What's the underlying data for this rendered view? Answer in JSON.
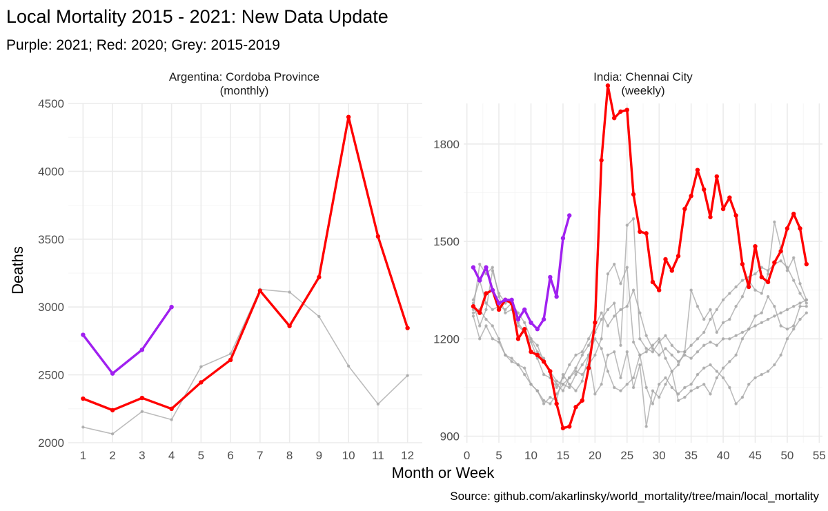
{
  "title": "Local Mortality 2015 - 2021: New Data Update",
  "subtitle": "Purple: 2021; Red: 2020; Grey: 2015-2019",
  "caption": "Source: github.com/akarlinsky/world_mortality/tree/main/local_mortality",
  "colors": {
    "y2021": "#a020f0",
    "y2020": "#ff0000",
    "grey": "#a6a6a6"
  },
  "chart_data": [
    {
      "type": "line",
      "facet_title": "Argentina: Cordoba Province\n(monthly)",
      "facet_line1": "Argentina: Cordoba Province",
      "facet_line2": "(monthly)",
      "xlabel": "Month or Week",
      "ylabel": "Deaths",
      "xlim": [
        0.5,
        12.5
      ],
      "ylim": [
        2000,
        4500
      ],
      "xticks": [
        1,
        2,
        3,
        4,
        5,
        6,
        7,
        8,
        9,
        10,
        11,
        12
      ],
      "yticks": [
        2000,
        2500,
        3000,
        3500,
        4000,
        4500
      ],
      "grid": true,
      "series": [
        {
          "color": "grey",
          "x": [
            1,
            2,
            3,
            4,
            5,
            6,
            7,
            8,
            9,
            10,
            11,
            12
          ],
          "y": [
            2115,
            2065,
            2230,
            2170,
            2560,
            2655,
            3130,
            3110,
            2930,
            2565,
            2285,
            2495
          ]
        },
        {
          "color": "y2020",
          "x": [
            1,
            2,
            3,
            4,
            5,
            6,
            7,
            8,
            9,
            10,
            11,
            12
          ],
          "y": [
            2325,
            2240,
            2330,
            2250,
            2445,
            2610,
            3120,
            2860,
            3220,
            4400,
            3520,
            2845
          ]
        },
        {
          "color": "y2021",
          "x": [
            1,
            2,
            3,
            4
          ],
          "y": [
            2795,
            2510,
            2685,
            3000
          ]
        }
      ]
    },
    {
      "type": "line",
      "facet_title": "India: Chennai City\n(weekly)",
      "facet_line1": "India: Chennai City",
      "facet_line2": "(weekly)",
      "xlim": [
        -0.5,
        55.5
      ],
      "ylim": [
        880,
        1925
      ],
      "xticks": [
        0,
        5,
        10,
        15,
        20,
        25,
        30,
        35,
        40,
        45,
        50,
        55
      ],
      "yticks": [
        900,
        1200,
        1500,
        1800
      ],
      "grid": true,
      "series": [
        {
          "color": "grey",
          "x": [
            1,
            2,
            3,
            4,
            5,
            6,
            7,
            8,
            9,
            10,
            11,
            12,
            13,
            14,
            15,
            16,
            17,
            18,
            19,
            20,
            21,
            22,
            23,
            24,
            25,
            26,
            27,
            28,
            29,
            30,
            31,
            32,
            33,
            34,
            35,
            36,
            37,
            38,
            39,
            40,
            41,
            42,
            43,
            44,
            45,
            46,
            47,
            48,
            49,
            50,
            51,
            52,
            53
          ],
          "y": [
            1290,
            1430,
            1400,
            1420,
            1330,
            1280,
            1290,
            1250,
            1220,
            1200,
            1160,
            1140,
            1090,
            1060,
            1040,
            1080,
            1110,
            1150,
            1180,
            1220,
            1260,
            1290,
            1310,
            1180,
            1550,
            1570,
            1200,
            1170,
            1160,
            1190,
            1210,
            1180,
            1160,
            1160,
            1180,
            1200,
            1220,
            1260,
            1290,
            1320,
            1340,
            1360,
            1380,
            1390,
            1400,
            1420,
            1410,
            1430,
            1440,
            1420,
            1380,
            1340,
            1310
          ]
        },
        {
          "color": "grey",
          "x": [
            1,
            2,
            3,
            4,
            5,
            6,
            7,
            8,
            9,
            10,
            11,
            12,
            13,
            14,
            15,
            16,
            17,
            18,
            19,
            20,
            21,
            22,
            23,
            24,
            25,
            26,
            27,
            28,
            29,
            30,
            31,
            32,
            33,
            34,
            35,
            36,
            37,
            38,
            39,
            40,
            41,
            42,
            43,
            44,
            45,
            46,
            47,
            48,
            49,
            50,
            51,
            52,
            53
          ],
          "y": [
            1320,
            1380,
            1310,
            1290,
            1300,
            1290,
            1310,
            1280,
            1250,
            1200,
            1180,
            1130,
            1100,
            1070,
            1060,
            1080,
            1100,
            1090,
            1120,
            1150,
            1200,
            1400,
            1430,
            1370,
            1420,
            1190,
            1150,
            1160,
            1180,
            1200,
            1140,
            1100,
            1120,
            1160,
            1350,
            1300,
            1260,
            1290,
            1220,
            1250,
            1260,
            1300,
            1330,
            1380,
            1350,
            1340,
            1400,
            1560,
            1480,
            1410,
            1450,
            1370,
            1320
          ]
        },
        {
          "color": "grey",
          "x": [
            1,
            2,
            3,
            4,
            5,
            6,
            7,
            8,
            9,
            10,
            11,
            12,
            13,
            14,
            15,
            16,
            17,
            18,
            19,
            20,
            21,
            22,
            23,
            24,
            25,
            26,
            27,
            28,
            29,
            30,
            31,
            32,
            33,
            34,
            35,
            36,
            37,
            38,
            39,
            40,
            41,
            42,
            43,
            44,
            45,
            46,
            47,
            48,
            49,
            50,
            51,
            52,
            53
          ],
          "y": [
            1310,
            1240,
            1290,
            1410,
            1340,
            1310,
            1320,
            1240,
            1220,
            1190,
            1140,
            1090,
            1080,
            1050,
            1080,
            1120,
            1150,
            1160,
            1200,
            1240,
            1280,
            1240,
            1270,
            1290,
            1300,
            1350,
            1280,
            1210,
            1170,
            1150,
            1170,
            1150,
            1130,
            1150,
            1140,
            1160,
            1180,
            1190,
            1180,
            1200,
            1200,
            1210,
            1220,
            1230,
            1240,
            1250,
            1260,
            1270,
            1280,
            1290,
            1300,
            1310,
            1320
          ]
        },
        {
          "color": "grey",
          "x": [
            1,
            2,
            3,
            4,
            5,
            6,
            7,
            8,
            9,
            10,
            11,
            12,
            13,
            14,
            15,
            16,
            17,
            18,
            19,
            20,
            21,
            22,
            23,
            24,
            25,
            26,
            27,
            28,
            29,
            30,
            31,
            32,
            33,
            34,
            35,
            36,
            37,
            38,
            39,
            40,
            41,
            42,
            43,
            44,
            45,
            46,
            47,
            48,
            49,
            50,
            51,
            52,
            53
          ],
          "y": [
            1270,
            1200,
            1240,
            1200,
            1190,
            1150,
            1140,
            1120,
            1110,
            1060,
            1040,
            1000,
            1020,
            1010,
            1090,
            1060,
            1040,
            1070,
            1150,
            1030,
            1060,
            1150,
            1160,
            1080,
            1160,
            1050,
            1120,
            930,
            1040,
            1020,
            1060,
            1100,
            1010,
            1020,
            1040,
            1050,
            1060,
            1030,
            1080,
            1110,
            1130,
            1150,
            1200,
            1230,
            1270,
            1280,
            1330,
            1300,
            1240,
            1230,
            1240,
            1300,
            1300
          ]
        },
        {
          "color": "grey",
          "x": [
            1,
            2,
            3,
            4,
            5,
            6,
            7,
            8,
            9,
            10,
            11,
            12,
            13,
            14,
            15,
            16,
            17,
            18,
            19,
            20,
            21,
            22,
            23,
            24,
            25,
            26,
            27,
            28,
            29,
            30,
            31,
            32,
            33,
            34,
            35,
            36,
            37,
            38,
            39,
            40,
            41,
            42,
            43,
            44,
            45,
            46,
            47,
            48,
            49,
            50,
            51,
            52,
            53
          ],
          "y": [
            1280,
            1290,
            1260,
            1240,
            1200,
            1150,
            1130,
            1120,
            1090,
            1060,
            1040,
            1010,
            1000,
            1030,
            1060,
            1050,
            1090,
            1120,
            1150,
            1200,
            1170,
            1100,
            1050,
            1040,
            1060,
            1080,
            1150,
            1050,
            1000,
            1060,
            1080,
            1050,
            1030,
            1050,
            1060,
            1090,
            1110,
            1120,
            1100,
            1080,
            1050,
            1000,
            1020,
            1060,
            1080,
            1090,
            1100,
            1120,
            1150,
            1200,
            1230,
            1260,
            1280
          ]
        },
        {
          "color": "y2020",
          "x": [
            1,
            2,
            3,
            4,
            5,
            6,
            7,
            8,
            9,
            10,
            11,
            12,
            13,
            14,
            15,
            16,
            17,
            18,
            19,
            20,
            21,
            22,
            23,
            24,
            25,
            26,
            27,
            28,
            29,
            30,
            31,
            32,
            33,
            34,
            35,
            36,
            37,
            38,
            39,
            40,
            41,
            42,
            43,
            44,
            45,
            46,
            47,
            48,
            49,
            50,
            51,
            52,
            53
          ],
          "y": [
            1300,
            1280,
            1340,
            1350,
            1290,
            1320,
            1310,
            1200,
            1230,
            1160,
            1150,
            1130,
            1100,
            1000,
            925,
            930,
            990,
            1010,
            1110,
            1250,
            1750,
            1980,
            1880,
            1900,
            1905,
            1645,
            1530,
            1525,
            1375,
            1350,
            1445,
            1410,
            1455,
            1600,
            1640,
            1720,
            1660,
            1575,
            1700,
            1600,
            1635,
            1580,
            1430,
            1360,
            1485,
            1390,
            1375,
            1435,
            1470,
            1540,
            1585,
            1540,
            1430
          ]
        },
        {
          "color": "y2021",
          "x": [
            1,
            2,
            3,
            4,
            5,
            6,
            7,
            8,
            9,
            10,
            11,
            12,
            13,
            14,
            15,
            16
          ],
          "y": [
            1420,
            1380,
            1420,
            1350,
            1310,
            1320,
            1320,
            1260,
            1290,
            1250,
            1230,
            1260,
            1390,
            1330,
            1510,
            1580
          ]
        }
      ]
    }
  ]
}
